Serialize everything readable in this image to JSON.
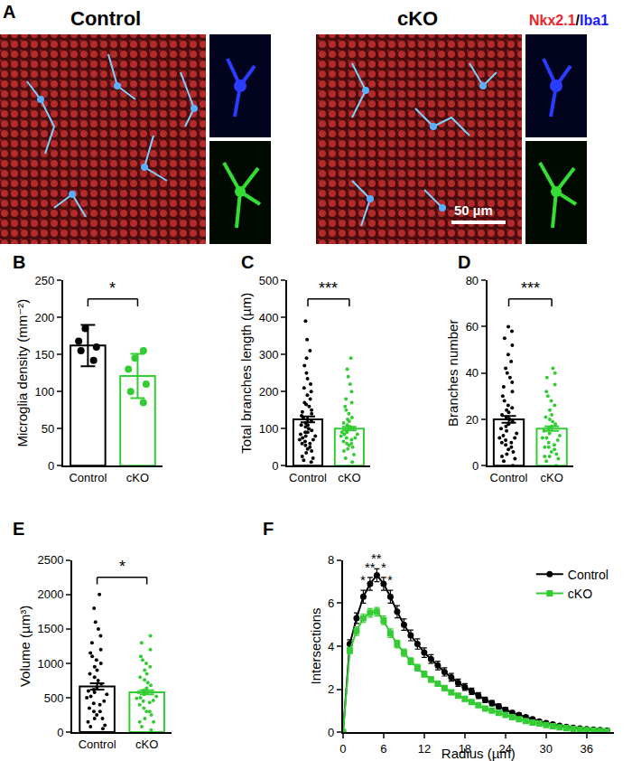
{
  "image_panel": {
    "panel": "A",
    "images": [
      {
        "title": "Control"
      },
      {
        "title": "cKO",
        "scale_bar": "50 µm"
      }
    ],
    "stain": [
      {
        "text": "Nkx2.1",
        "color": "#e8262a"
      },
      {
        "text": "/",
        "color": "#000000"
      },
      {
        "text": "Iba1",
        "color": "#1a1aff"
      }
    ]
  },
  "chart_data": [
    {
      "panel": "B",
      "type": "bar",
      "ylabel": "Microglia density (mm⁻²)",
      "categories": [
        "Control",
        "cKO"
      ],
      "values": [
        162,
        121
      ],
      "errors": [
        28,
        30
      ],
      "colors": [
        "#000000",
        "#33cc33"
      ],
      "points": [
        [
          185,
          168,
          160,
          142,
          155
        ],
        [
          155,
          145,
          130,
          100,
          85,
          110
        ]
      ],
      "significance": "*",
      "ylim": [
        0,
        250
      ],
      "yticks": [
        0,
        50,
        100,
        150,
        200,
        250
      ]
    },
    {
      "panel": "C",
      "type": "bar",
      "ylabel": "Total branches length (µm)",
      "categories": [
        "Control",
        "cKO"
      ],
      "values": [
        125,
        100
      ],
      "errors": [
        8,
        5
      ],
      "colors": [
        "#000000",
        "#33cc33"
      ],
      "points": [
        [
          20,
          35,
          45,
          50,
          60,
          65,
          70,
          75,
          80,
          85,
          90,
          95,
          100,
          105,
          110,
          110,
          115,
          120,
          125,
          130,
          135,
          140,
          145,
          150,
          160,
          165,
          170,
          180,
          190,
          200,
          210,
          220,
          235,
          250,
          270,
          290,
          310,
          340,
          390,
          15,
          10,
          25,
          40,
          55,
          60,
          70,
          80,
          90
        ],
        [
          10,
          20,
          30,
          40,
          50,
          55,
          60,
          65,
          70,
          75,
          80,
          85,
          85,
          90,
          95,
          100,
          100,
          105,
          110,
          115,
          120,
          125,
          130,
          140,
          150,
          160,
          170,
          180,
          200,
          220,
          240,
          260,
          290,
          45,
          60,
          75,
          90
        ]
      ],
      "significance": "***",
      "ylim": [
        0,
        500
      ],
      "yticks": [
        0,
        100,
        200,
        300,
        400,
        500
      ]
    },
    {
      "panel": "D",
      "type": "bar",
      "ylabel": "Branches number",
      "categories": [
        "Control",
        "cKO"
      ],
      "values": [
        20,
        16
      ],
      "errors": [
        1.5,
        1
      ],
      "colors": [
        "#000000",
        "#33cc33"
      ],
      "points": [
        [
          0,
          2,
          4,
          5,
          6,
          8,
          9,
          10,
          11,
          12,
          13,
          14,
          15,
          16,
          17,
          18,
          19,
          20,
          21,
          22,
          23,
          24,
          25,
          26,
          28,
          30,
          32,
          34,
          36,
          38,
          40,
          42,
          45,
          48,
          52,
          55,
          58,
          60,
          3,
          7,
          10,
          12
        ],
        [
          0,
          2,
          3,
          4,
          5,
          6,
          7,
          8,
          9,
          10,
          11,
          12,
          13,
          14,
          15,
          16,
          17,
          18,
          19,
          20,
          21,
          22,
          24,
          26,
          28,
          30,
          32,
          35,
          38,
          40,
          42,
          4,
          8,
          12
        ]
      ],
      "significance": "***",
      "ylim": [
        0,
        80
      ],
      "yticks": [
        0,
        20,
        40,
        60,
        80
      ]
    },
    {
      "panel": "E",
      "type": "bar",
      "ylabel": "Volume (µm³)",
      "categories": [
        "Control",
        "cKO"
      ],
      "values": [
        665,
        580
      ],
      "errors": [
        45,
        30
      ],
      "colors": [
        "#000000",
        "#33cc33"
      ],
      "points": [
        [
          50,
          100,
          150,
          200,
          250,
          300,
          350,
          400,
          450,
          500,
          520,
          550,
          580,
          600,
          620,
          650,
          700,
          750,
          800,
          850,
          900,
          950,
          1000,
          1050,
          1100,
          1150,
          1200,
          1300,
          1400,
          1500,
          1600,
          1800,
          2000,
          80,
          200,
          300,
          420
        ],
        [
          30,
          80,
          150,
          200,
          250,
          300,
          350,
          400,
          430,
          460,
          490,
          520,
          550,
          580,
          610,
          640,
          680,
          720,
          760,
          800,
          850,
          900,
          950,
          1000,
          1050,
          1100,
          1200,
          1300,
          1400,
          150,
          300,
          450,
          500
        ]
      ],
      "significance": "*",
      "ylim": [
        0,
        2500
      ],
      "yticks": [
        0,
        500,
        1000,
        1500,
        2000,
        2500
      ]
    },
    {
      "panel": "F",
      "type": "line",
      "xlabel": "Radius (µm)",
      "ylabel": "Intersections",
      "x": [
        0,
        1,
        2,
        3,
        4,
        5,
        6,
        7,
        8,
        9,
        10,
        11,
        12,
        13,
        14,
        15,
        16,
        17,
        18,
        19,
        20,
        21,
        22,
        23,
        24,
        25,
        26,
        27,
        28,
        29,
        30,
        31,
        32,
        33,
        34,
        35,
        36,
        37,
        38,
        39
      ],
      "series": [
        {
          "name": "Control",
          "color": "#000000",
          "marker": "circle",
          "line_style": "solid",
          "values": [
            0,
            4.1,
            5.3,
            6.3,
            6.9,
            7.3,
            6.9,
            6.3,
            5.6,
            5.0,
            4.5,
            4.1,
            3.7,
            3.4,
            3.1,
            2.8,
            2.55,
            2.3,
            2.1,
            1.9,
            1.7,
            1.5,
            1.35,
            1.2,
            1.05,
            0.9,
            0.8,
            0.7,
            0.6,
            0.5,
            0.43,
            0.36,
            0.3,
            0.25,
            0.2,
            0.17,
            0.14,
            0.12,
            0.1,
            0.08
          ],
          "errors": [
            0,
            0.2,
            0.25,
            0.3,
            0.3,
            0.3,
            0.3,
            0.3,
            0.28,
            0.26,
            0.25,
            0.24,
            0.22,
            0.2,
            0.2,
            0.19,
            0.18,
            0.17,
            0.16,
            0.15,
            0.14,
            0.13,
            0.12,
            0.11,
            0.1,
            0.1,
            0.09,
            0.08,
            0.07,
            0.06,
            0.06,
            0.05,
            0.05,
            0.04,
            0.04,
            0.03,
            0.03,
            0.03,
            0.02,
            0.02
          ]
        },
        {
          "name": "cKO",
          "color": "#33cc33",
          "marker": "square",
          "line_style": "solid",
          "values": [
            0,
            3.8,
            4.7,
            5.3,
            5.55,
            5.6,
            5.2,
            4.6,
            4.1,
            3.7,
            3.3,
            3.0,
            2.7,
            2.45,
            2.25,
            2.05,
            1.85,
            1.7,
            1.55,
            1.4,
            1.25,
            1.1,
            1.0,
            0.9,
            0.8,
            0.7,
            0.6,
            0.52,
            0.45,
            0.4,
            0.33,
            0.28,
            0.23,
            0.19,
            0.15,
            0.12,
            0.1,
            0.08,
            0.06,
            0.05
          ],
          "errors": [
            0,
            0.15,
            0.2,
            0.2,
            0.2,
            0.2,
            0.2,
            0.2,
            0.18,
            0.17,
            0.16,
            0.15,
            0.14,
            0.13,
            0.12,
            0.12,
            0.11,
            0.1,
            0.1,
            0.09,
            0.08,
            0.08,
            0.07,
            0.07,
            0.06,
            0.06,
            0.05,
            0.05,
            0.05,
            0.04,
            0.04,
            0.03,
            0.03,
            0.03,
            0.02,
            0.02,
            0.02,
            0.02,
            0.01,
            0.01
          ]
        }
      ],
      "annotations": [
        {
          "x": 3,
          "text": "*"
        },
        {
          "x": 4,
          "text": "**"
        },
        {
          "x": 5,
          "text": "**"
        },
        {
          "x": 6,
          "text": "*"
        },
        {
          "x": 7,
          "text": "*"
        }
      ],
      "xlim": [
        0,
        40
      ],
      "xticks": [
        0,
        6,
        12,
        18,
        24,
        30,
        36
      ],
      "ylim": [
        0,
        8
      ],
      "yticks": [
        0,
        2,
        4,
        6,
        8
      ],
      "legend": "upper right"
    }
  ]
}
